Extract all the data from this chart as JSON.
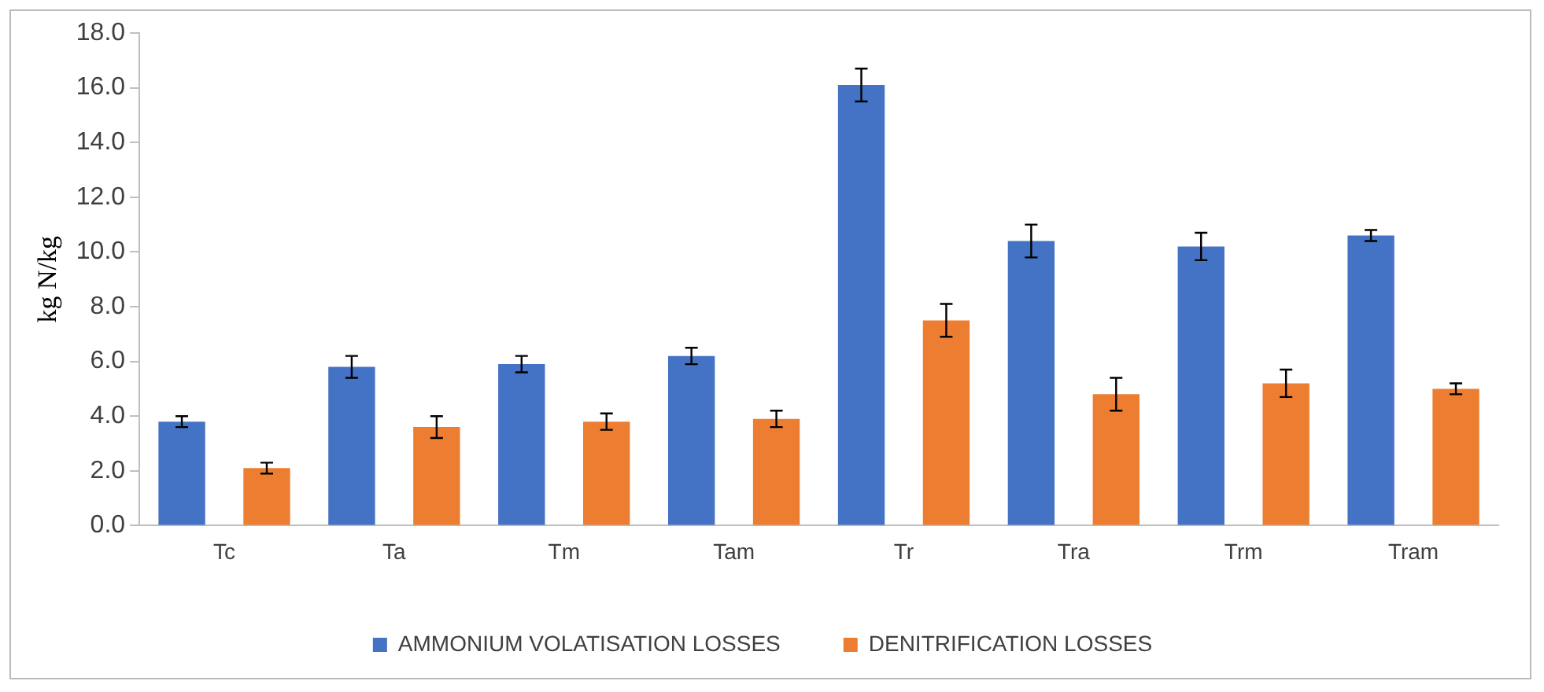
{
  "chart_data": {
    "type": "bar",
    "ylabel": "kg N/kg",
    "categories": [
      "Tc",
      "Ta",
      "Tm",
      "Tam",
      "Tr",
      "Tra",
      "Trm",
      "Tram"
    ],
    "series": [
      {
        "name": "AMMONIUM VOLATISATION LOSSES",
        "color": "#4472c4",
        "values": [
          3.8,
          5.8,
          5.9,
          6.2,
          16.1,
          10.4,
          10.2,
          10.6
        ],
        "errors": [
          0.2,
          0.4,
          0.3,
          0.3,
          0.6,
          0.6,
          0.5,
          0.2
        ]
      },
      {
        "name": "DENITRIFICATION LOSSES",
        "color": "#ed7d31",
        "values": [
          2.1,
          3.6,
          3.8,
          3.9,
          7.5,
          4.8,
          5.2,
          5.0
        ],
        "errors": [
          0.2,
          0.4,
          0.3,
          0.3,
          0.6,
          0.6,
          0.5,
          0.2
        ]
      }
    ],
    "ylim": [
      0,
      18
    ],
    "yticks": [
      {
        "value": 0,
        "label": "0.0"
      },
      {
        "value": 2,
        "label": "2.0"
      },
      {
        "value": 4,
        "label": "4.0"
      },
      {
        "value": 6,
        "label": "6.0"
      },
      {
        "value": 8,
        "label": "8.0"
      },
      {
        "value": 10,
        "label": "10.0"
      },
      {
        "value": 12,
        "label": "12.0"
      },
      {
        "value": 14,
        "label": "14.0"
      },
      {
        "value": 16,
        "label": "16.0"
      },
      {
        "value": 18,
        "label": "18.0"
      }
    ],
    "grid": false,
    "legend": "bottom"
  }
}
